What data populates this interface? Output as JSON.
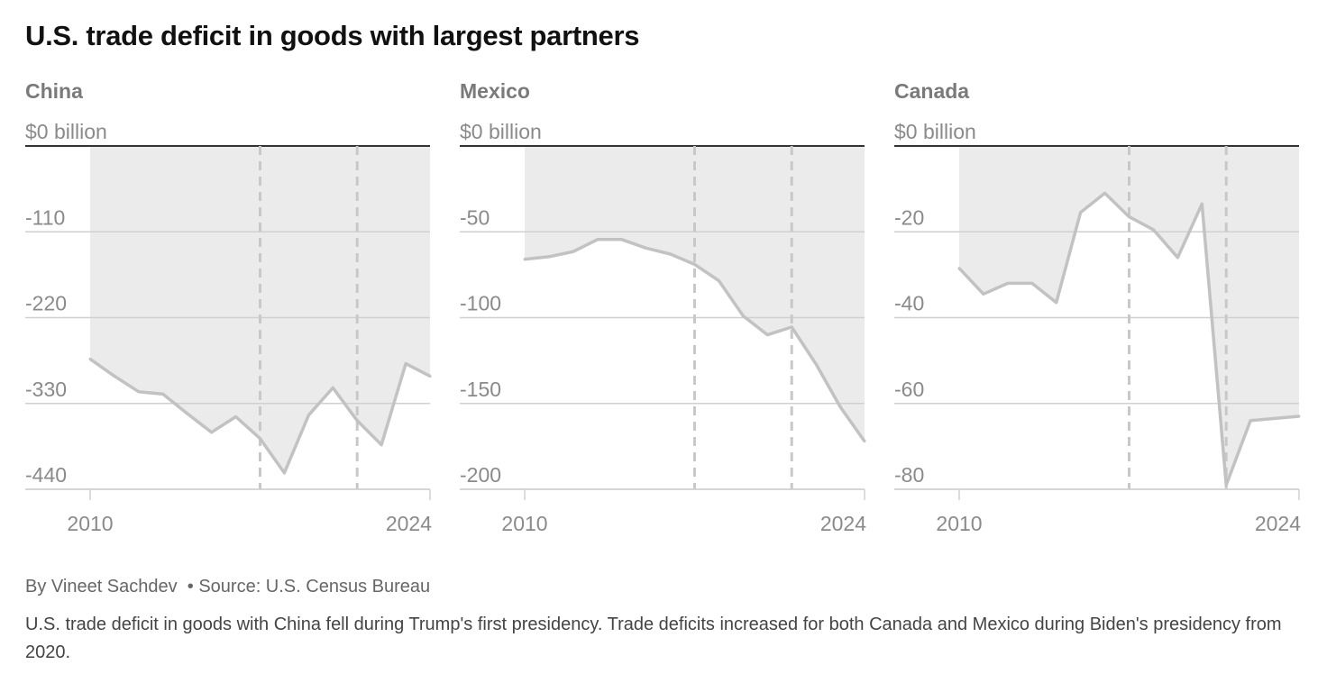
{
  "title": "U.S. trade deficit in goods with largest partners",
  "byline": "By Vineet Sachdev",
  "source": "Source: U.S. Census Bureau",
  "description": "U.S. trade deficit in goods with China fell during Trump's first presidency. Trade deficits increased for both Canada and Mexico during Biden's presidency from 2020.",
  "colors": {
    "line": "#c2c2c2",
    "area": "#ebebeb",
    "grid": "#d0d0d0",
    "zero_line": "#333333",
    "dashed": "#c8c8c8",
    "tick_text": "#8a8a8a",
    "panel_title": "#7a7a7a"
  },
  "chart_data": [
    {
      "type": "area",
      "name": "China",
      "unit_label": "$0 billion",
      "y_ticks": [
        0,
        -110,
        -220,
        -330,
        -440
      ],
      "y_tick_labels": [
        "$0 billion",
        "-110",
        "-220",
        "-330",
        "-440"
      ],
      "ylim": [
        -440,
        0
      ],
      "xlim": [
        2010,
        2024
      ],
      "x_tick_labels": [
        "2010",
        "2024"
      ],
      "dashed_years": [
        2017,
        2021
      ],
      "x": [
        2010,
        2011,
        2012,
        2013,
        2014,
        2015,
        2016,
        2017,
        2018,
        2019,
        2020,
        2021,
        2022,
        2023,
        2024
      ],
      "values": [
        -273,
        -295,
        -315,
        -318,
        -343,
        -367,
        -347,
        -375,
        -419,
        -345,
        -310,
        -352,
        -383,
        -279,
        -295
      ]
    },
    {
      "type": "area",
      "name": "Mexico",
      "unit_label": "$0 billion",
      "y_ticks": [
        0,
        -50,
        -100,
        -150,
        -200
      ],
      "y_tick_labels": [
        "$0 billion",
        "-50",
        "-100",
        "-150",
        "-200"
      ],
      "ylim": [
        -200,
        0
      ],
      "xlim": [
        2010,
        2024
      ],
      "x_tick_labels": [
        "2010",
        "2024"
      ],
      "dashed_years": [
        2017,
        2021
      ],
      "x": [
        2010,
        2011,
        2012,
        2013,
        2014,
        2015,
        2016,
        2017,
        2018,
        2019,
        2020,
        2021,
        2022,
        2023,
        2024
      ],
      "values": [
        -66,
        -64.5,
        -61.5,
        -54.5,
        -54.5,
        -59.5,
        -63,
        -69,
        -78.5,
        -99,
        -110,
        -105.5,
        -127,
        -152,
        -172
      ]
    },
    {
      "type": "area",
      "name": "Canada",
      "unit_label": "$0 billion",
      "y_ticks": [
        0,
        -20,
        -40,
        -60,
        -80
      ],
      "y_tick_labels": [
        "$0 billion",
        "-20",
        "-40",
        "-60",
        "-80"
      ],
      "ylim": [
        -80,
        0
      ],
      "xlim": [
        2010,
        2024
      ],
      "x_tick_labels": [
        "2010",
        "2024"
      ],
      "dashed_years": [
        2017,
        2021
      ],
      "x": [
        2010,
        2011,
        2012,
        2013,
        2014,
        2015,
        2016,
        2017,
        2018,
        2019,
        2020,
        2021,
        2022,
        2023,
        2024
      ],
      "values": [
        -28.5,
        -34.5,
        -32,
        -32,
        -36.5,
        -15.5,
        -11,
        -16.5,
        -19.5,
        -26,
        -13.5,
        -79,
        -64,
        -63.5,
        -63
      ]
    }
  ]
}
